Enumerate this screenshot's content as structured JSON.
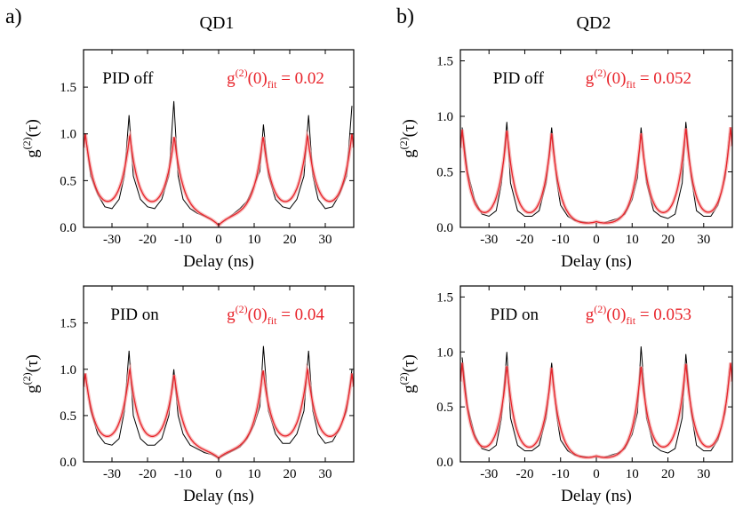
{
  "figure": {
    "panel_letters": [
      "a)",
      "b)"
    ],
    "column_titles": [
      "QD1",
      "QD2"
    ]
  },
  "colors": {
    "data": "#000000",
    "fit": "#e8232a",
    "fit_band": "#f3a6a6"
  },
  "chart_data": [
    {
      "type": "line",
      "column": "QD1",
      "state_label": "PID off",
      "fit_label": {
        "g": "g",
        "sup": "(2)",
        "mid": "(0)",
        "sub": "fit",
        "value": " = 0.02"
      },
      "ylabel": {
        "g": "g",
        "sup": "(2)",
        "rest": "(τ)"
      },
      "xlabel": "Delay (ns)",
      "xlim": [
        -38,
        38
      ],
      "ylim": [
        0,
        1.9
      ],
      "xticks": [
        -30,
        -20,
        -10,
        0,
        10,
        20,
        30
      ],
      "yticks": [
        0.0,
        0.5,
        1.0,
        1.5
      ],
      "ytick_labels": [
        "0.0",
        "0.5",
        "1.0",
        "1.5"
      ],
      "series": [
        {
          "role": "measured data",
          "x": [
            -37.5,
            -36,
            -34,
            -32,
            -30,
            -28,
            -26.5,
            -25.2,
            -24,
            -22,
            -20,
            -18,
            -16,
            -14,
            -12.6,
            -11.4,
            -10,
            -8,
            -6,
            -4,
            -2,
            0,
            2,
            4,
            6,
            8,
            10,
            11.6,
            12.6,
            14,
            16,
            18,
            20,
            22,
            24,
            25.3,
            26.5,
            28,
            30,
            32,
            34,
            36,
            37.5
          ],
          "y": [
            1.0,
            0.55,
            0.35,
            0.22,
            0.2,
            0.3,
            0.55,
            1.2,
            0.55,
            0.3,
            0.22,
            0.2,
            0.3,
            0.55,
            1.35,
            0.55,
            0.3,
            0.2,
            0.15,
            0.12,
            0.08,
            0.03,
            0.08,
            0.14,
            0.2,
            0.28,
            0.45,
            0.6,
            1.1,
            0.55,
            0.3,
            0.22,
            0.2,
            0.3,
            0.55,
            1.2,
            0.55,
            0.3,
            0.2,
            0.22,
            0.35,
            0.55,
            1.3
          ]
        },
        {
          "role": "fit",
          "peak_centers": [
            -37.5,
            -25,
            -12.5,
            12.5,
            25,
            37.5
          ],
          "peak_heights": [
            1.0,
            0.98,
            0.98,
            0.98,
            0.98,
            1.0
          ],
          "decay_ns": 2.6,
          "baseline": 0.12,
          "center_value": 0.02
        }
      ]
    },
    {
      "type": "line",
      "column": "QD2",
      "state_label": "PID off",
      "fit_label": {
        "g": "g",
        "sup": "(2)",
        "mid": "(0)",
        "sub": "fit",
        "value": " = 0.052"
      },
      "ylabel": {
        "g": "g",
        "sup": "(2)",
        "rest": "(τ)"
      },
      "xlabel": "Delay (ns)",
      "xlim": [
        -38,
        38
      ],
      "ylim": [
        0,
        1.6
      ],
      "xticks": [
        -30,
        -20,
        -10,
        0,
        10,
        20,
        30
      ],
      "yticks": [
        0.0,
        0.5,
        1.0,
        1.5
      ],
      "ytick_labels": [
        "0.0",
        "0.5",
        "1.0",
        "1.5"
      ],
      "series": [
        {
          "role": "measured data",
          "x": [
            -37.5,
            -36,
            -34,
            -32,
            -30,
            -28,
            -26.5,
            -25,
            -24,
            -22,
            -20,
            -18,
            -16,
            -14,
            -12.5,
            -11,
            -10,
            -8,
            -6,
            -4,
            -2,
            0,
            2,
            4,
            6,
            8,
            10,
            11.5,
            12.5,
            14,
            16,
            18,
            20,
            22,
            24,
            25,
            26.5,
            28,
            30,
            32,
            34,
            36,
            37.5
          ],
          "y": [
            0.9,
            0.5,
            0.25,
            0.12,
            0.1,
            0.15,
            0.4,
            0.95,
            0.4,
            0.15,
            0.1,
            0.1,
            0.15,
            0.4,
            0.9,
            0.4,
            0.2,
            0.1,
            0.06,
            0.05,
            0.04,
            0.05,
            0.04,
            0.06,
            0.08,
            0.12,
            0.25,
            0.45,
            0.9,
            0.4,
            0.15,
            0.1,
            0.08,
            0.12,
            0.4,
            0.95,
            0.45,
            0.15,
            0.1,
            0.1,
            0.2,
            0.45,
            0.9
          ]
        },
        {
          "role": "fit",
          "peak_centers": [
            -37.5,
            -25,
            -12.5,
            12.5,
            25,
            37.5
          ],
          "peak_heights": [
            0.88,
            0.88,
            0.86,
            0.86,
            0.9,
            0.9
          ],
          "decay_ns": 2.3,
          "baseline": 0.02,
          "center_value": 0.052
        }
      ]
    },
    {
      "type": "line",
      "column": "QD1",
      "state_label": "PID on",
      "fit_label": {
        "g": "g",
        "sup": "(2)",
        "mid": "(0)",
        "sub": "fit",
        "value": " = 0.04"
      },
      "ylabel": {
        "g": "g",
        "sup": "(2)",
        "rest": "(τ)"
      },
      "xlabel": "Delay (ns)",
      "xlim": [
        -38,
        38
      ],
      "ylim": [
        0,
        1.9
      ],
      "xticks": [
        -30,
        -20,
        -10,
        0,
        10,
        20,
        30
      ],
      "yticks": [
        0.0,
        0.5,
        1.0,
        1.5
      ],
      "ytick_labels": [
        "0.0",
        "0.5",
        "1.0",
        "1.5"
      ],
      "series": [
        {
          "role": "measured data",
          "x": [
            -37.5,
            -36,
            -34,
            -32,
            -30,
            -28,
            -26.5,
            -25.2,
            -24,
            -22,
            -20,
            -18,
            -16,
            -14,
            -12.6,
            -11.4,
            -10,
            -8,
            -6,
            -4,
            -2,
            0,
            2,
            4,
            6,
            8,
            10,
            11.6,
            12.6,
            14,
            16,
            18,
            20,
            22,
            24,
            25.3,
            26.5,
            28,
            30,
            32,
            34,
            36,
            37.5
          ],
          "y": [
            0.95,
            0.55,
            0.3,
            0.2,
            0.18,
            0.25,
            0.55,
            1.2,
            0.5,
            0.25,
            0.18,
            0.18,
            0.25,
            0.5,
            1.0,
            0.5,
            0.3,
            0.18,
            0.14,
            0.1,
            0.08,
            0.04,
            0.08,
            0.12,
            0.16,
            0.25,
            0.4,
            0.6,
            1.25,
            0.55,
            0.3,
            0.2,
            0.2,
            0.3,
            0.55,
            1.2,
            0.55,
            0.3,
            0.2,
            0.22,
            0.35,
            0.55,
            1.0
          ]
        },
        {
          "role": "fit",
          "peak_centers": [
            -37.5,
            -25,
            -12.5,
            12.5,
            25,
            37.5
          ],
          "peak_heights": [
            0.95,
            1.0,
            0.95,
            1.0,
            1.0,
            0.95
          ],
          "decay_ns": 2.6,
          "baseline": 0.12,
          "center_value": 0.04
        }
      ]
    },
    {
      "type": "line",
      "column": "QD2",
      "state_label": "PID on",
      "fit_label": {
        "g": "g",
        "sup": "(2)",
        "mid": "(0)",
        "sub": "fit",
        "value": " = 0.053"
      },
      "ylabel": {
        "g": "g",
        "sup": "(2)",
        "rest": "(τ)"
      },
      "xlabel": "Delay (ns)",
      "xlim": [
        -38,
        38
      ],
      "ylim": [
        0,
        1.6
      ],
      "xticks": [
        -30,
        -20,
        -10,
        0,
        10,
        20,
        30
      ],
      "yticks": [
        0.0,
        0.5,
        1.0,
        1.5
      ],
      "ytick_labels": [
        "0.0",
        "0.5",
        "1.0",
        "1.5"
      ],
      "series": [
        {
          "role": "measured data",
          "x": [
            -37.5,
            -36,
            -34,
            -32,
            -30,
            -28,
            -26.5,
            -25,
            -24,
            -22,
            -20,
            -18,
            -16,
            -14,
            -12.5,
            -11,
            -10,
            -8,
            -6,
            -4,
            -2,
            0,
            2,
            4,
            6,
            8,
            10,
            11.5,
            12.5,
            14,
            16,
            18,
            20,
            22,
            24,
            25,
            26.5,
            28,
            30,
            32,
            34,
            36,
            37.5
          ],
          "y": [
            0.95,
            0.5,
            0.25,
            0.12,
            0.1,
            0.15,
            0.4,
            1.0,
            0.4,
            0.15,
            0.1,
            0.1,
            0.15,
            0.4,
            0.9,
            0.4,
            0.2,
            0.1,
            0.06,
            0.05,
            0.04,
            0.05,
            0.04,
            0.06,
            0.08,
            0.12,
            0.25,
            0.45,
            1.05,
            0.4,
            0.15,
            0.1,
            0.08,
            0.12,
            0.4,
            0.98,
            0.45,
            0.15,
            0.1,
            0.1,
            0.2,
            0.45,
            0.9
          ]
        },
        {
          "role": "fit",
          "peak_centers": [
            -37.5,
            -25,
            -12.5,
            12.5,
            25,
            37.5
          ],
          "peak_heights": [
            0.9,
            0.88,
            0.87,
            0.88,
            0.9,
            0.9
          ],
          "decay_ns": 2.3,
          "baseline": 0.02,
          "center_value": 0.053
        }
      ]
    }
  ]
}
